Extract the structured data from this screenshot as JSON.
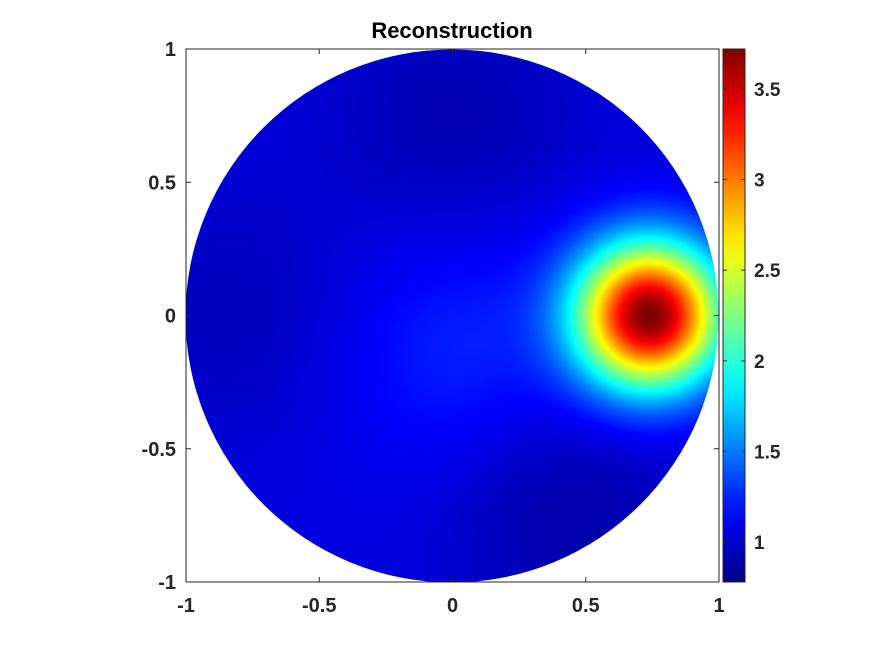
{
  "chart_data": {
    "type": "heatmap",
    "title": "Reconstruction",
    "xlabel": "",
    "ylabel": "",
    "domain": "unit-disk",
    "xlim": [
      -1,
      1
    ],
    "ylim": [
      -1,
      1
    ],
    "xticks": [
      -1,
      -0.5,
      0,
      0.5,
      1
    ],
    "yticks": [
      -1,
      -0.5,
      0,
      0.5,
      1
    ],
    "xtick_labels": [
      "-1",
      "-0.5",
      "0",
      "0.5",
      "1"
    ],
    "ytick_labels": [
      "-1",
      "-0.5",
      "0",
      "0.5",
      "1"
    ],
    "colormap": "jet",
    "color_limits": [
      0.78,
      3.72
    ],
    "colorbar_ticks": [
      1,
      1.5,
      2,
      2.5,
      3,
      3.5
    ],
    "colorbar_tick_labels": [
      "1",
      "1.5",
      "2",
      "2.5",
      "3",
      "3.5"
    ],
    "background_value": 1.05,
    "features": [
      {
        "x": 0.74,
        "y": 0.0,
        "peak": 3.72,
        "kind": "peak"
      },
      {
        "x": 0.05,
        "y": -0.15,
        "peak": 1.25,
        "kind": "ridge"
      },
      {
        "x": 0.4,
        "y": -0.7,
        "peak": 0.88,
        "kind": "low"
      },
      {
        "x": 0.0,
        "y": 0.72,
        "peak": 0.92,
        "kind": "low"
      },
      {
        "x": -0.8,
        "y": 0.0,
        "peak": 0.95,
        "kind": "low"
      }
    ],
    "grid": false,
    "legend": "colorbar-right"
  }
}
